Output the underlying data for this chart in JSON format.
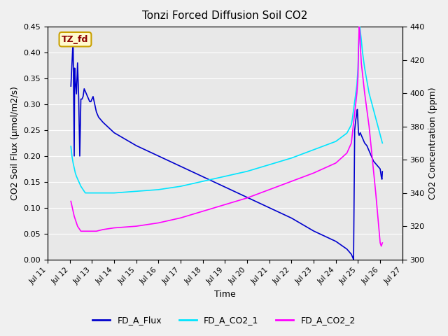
{
  "title": "Tonzi Forced Diffusion Soil CO2",
  "xlabel": "Time",
  "ylabel_left": "CO2 Soil Flux (μmol/m2/s)",
  "ylabel_right": "CO2 Concentration (ppm)",
  "annotation_text": "TZ_fd",
  "annotation_bg": "#fffacd",
  "annotation_border": "#c8a000",
  "annotation_text_color": "#8b0000",
  "ylim_left": [
    0.0,
    0.45
  ],
  "ylim_right": [
    300,
    440
  ],
  "xlim": [
    0,
    16
  ],
  "figure_bg": "#f0f0f0",
  "plot_bg": "#e8e8e8",
  "grid_color": "#ffffff",
  "legend_labels": [
    "FD_A_Flux",
    "FD_A_CO2_1",
    "FD_A_CO2_2"
  ],
  "legend_colors": [
    "#0000cd",
    "#00e5ff",
    "#ff00ff"
  ],
  "series": {
    "FD_A_Flux": {
      "color": "#0000cd",
      "linewidth": 1.2,
      "x": [
        1.05,
        1.1,
        1.15,
        1.2,
        1.22,
        1.25,
        1.3,
        1.35,
        1.4,
        1.45,
        1.5,
        1.55,
        1.6,
        1.65,
        1.7,
        1.75,
        1.8,
        1.85,
        1.9,
        1.95,
        2.0,
        2.05,
        2.1,
        2.15,
        2.2,
        2.3,
        2.5,
        3.0,
        4.0,
        5.0,
        6.0,
        7.0,
        8.0,
        9.0,
        10.0,
        11.0,
        12.0,
        13.0,
        13.5,
        13.7,
        13.75,
        13.8,
        13.85,
        13.9,
        13.92,
        13.95,
        13.97,
        14.0,
        14.02,
        14.05,
        14.1,
        14.15,
        14.2,
        14.3,
        14.4,
        14.5,
        14.6,
        14.7,
        14.8,
        14.9,
        15.0,
        15.05,
        15.08,
        15.1
      ],
      "y": [
        0.335,
        0.38,
        0.425,
        0.2,
        0.37,
        0.345,
        0.32,
        0.38,
        0.315,
        0.2,
        0.31,
        0.31,
        0.315,
        0.33,
        0.325,
        0.32,
        0.315,
        0.31,
        0.305,
        0.305,
        0.31,
        0.315,
        0.305,
        0.295,
        0.285,
        0.275,
        0.265,
        0.245,
        0.22,
        0.2,
        0.18,
        0.16,
        0.14,
        0.12,
        0.1,
        0.08,
        0.055,
        0.035,
        0.02,
        0.01,
        0.005,
        0.0,
        0.25,
        0.27,
        0.275,
        0.285,
        0.29,
        0.265,
        0.245,
        0.24,
        0.245,
        0.24,
        0.235,
        0.225,
        0.22,
        0.21,
        0.2,
        0.19,
        0.185,
        0.18,
        0.175,
        0.16,
        0.155,
        0.17
      ]
    },
    "FD_A_CO2_1": {
      "color": "#00e5ff",
      "linewidth": 1.2,
      "axis": "right",
      "x": [
        1.05,
        1.1,
        1.15,
        1.2,
        1.25,
        1.3,
        1.4,
        1.5,
        1.6,
        1.65,
        1.7,
        1.75,
        1.8,
        1.85,
        1.9,
        1.95,
        2.0,
        2.1,
        2.2,
        2.5,
        3.0,
        4.0,
        5.0,
        6.0,
        7.0,
        8.0,
        9.0,
        10.0,
        11.0,
        12.0,
        13.0,
        13.5,
        13.7,
        13.75,
        13.8,
        13.85,
        13.9,
        13.95,
        14.0,
        14.02,
        14.05,
        14.08,
        14.1,
        14.15,
        14.2,
        14.3,
        14.5,
        14.8,
        15.0,
        15.1
      ],
      "y": [
        368,
        362,
        358,
        355,
        352,
        350,
        347,
        344,
        342,
        341,
        340,
        340,
        340,
        340,
        340,
        340,
        340,
        340,
        340,
        340,
        340,
        341,
        342,
        344,
        347,
        350,
        353,
        357,
        361,
        366,
        371,
        376,
        381,
        385,
        390,
        395,
        400,
        405,
        415,
        425,
        435,
        440,
        438,
        432,
        425,
        415,
        400,
        385,
        375,
        370
      ]
    },
    "FD_A_CO2_2": {
      "color": "#ff00ff",
      "linewidth": 1.2,
      "axis": "right",
      "x": [
        1.05,
        1.1,
        1.15,
        1.2,
        1.25,
        1.3,
        1.35,
        1.4,
        1.45,
        1.5,
        1.55,
        1.6,
        1.65,
        1.7,
        1.75,
        1.8,
        1.85,
        1.9,
        1.95,
        2.0,
        2.1,
        2.2,
        2.5,
        3.0,
        4.0,
        5.0,
        6.0,
        7.0,
        8.0,
        9.0,
        10.0,
        11.0,
        12.0,
        13.0,
        13.5,
        13.7,
        13.75,
        13.8,
        13.85,
        13.9,
        13.95,
        14.0,
        14.02,
        14.05,
        14.08,
        14.1,
        14.15,
        14.3,
        14.5,
        14.8,
        15.0,
        15.05,
        15.1
      ],
      "y": [
        335,
        332,
        329,
        326,
        324,
        322,
        320,
        319,
        318,
        317,
        317,
        317,
        317,
        317,
        317,
        317,
        317,
        317,
        317,
        317,
        317,
        317,
        318,
        319,
        320,
        322,
        325,
        329,
        333,
        337,
        342,
        347,
        352,
        358,
        364,
        370,
        376,
        382,
        388,
        394,
        400,
        410,
        425,
        440,
        437,
        430,
        418,
        400,
        380,
        340,
        310,
        308,
        310
      ]
    }
  },
  "xticks": {
    "positions": [
      0,
      1,
      2,
      3,
      4,
      5,
      6,
      7,
      8,
      9,
      10,
      11,
      12,
      13,
      14,
      15,
      16
    ],
    "labels": [
      "Jul 11",
      "Jul 12",
      "Jul 13",
      "Jul 14",
      "Jul 15",
      "Jul 16",
      "Jul 17",
      "Jul 18",
      "Jul 19",
      "Jul 20",
      "Jul 21",
      "Jul 22",
      "Jul 23",
      "Jul 24",
      "Jul 25",
      "Jul 26",
      "Jul 27"
    ]
  }
}
